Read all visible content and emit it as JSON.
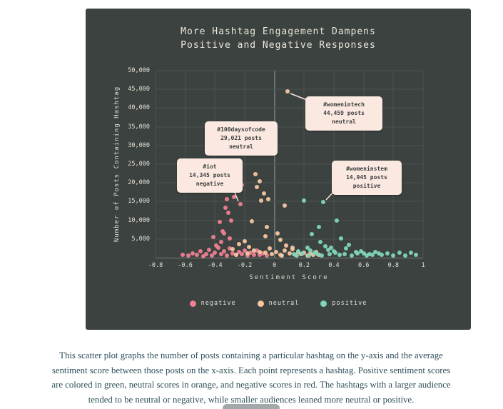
{
  "page": {
    "caption": "This scatter plot graphs the number of posts containing a particular hashtag on the y-axis and the average sentiment score between those posts on the x-axis. Each point represents a hashtag. Positive sentiment scores are colored in green, neutral scores in orange, and negative scores in red. The hashtags with a larger audience tended to be neutral or negative, while smaller audiences leaned more neutral or positive."
  },
  "chart": {
    "panel_bg": "#3b4240",
    "title_line1": "More Hashtag Engagement Dampens",
    "title_line2": "Positive and Negative Responses"
  },
  "chart_data": {
    "type": "scatter",
    "title": "More Hashtag Engagement Dampens Positive and Negative Responses",
    "xlabel": "Sentiment Score",
    "ylabel": "Number of Posts Containing Hashtag",
    "xlim": [
      -0.8,
      1.0
    ],
    "ylim": [
      0,
      50000
    ],
    "grid": true,
    "legend_position": "bottom",
    "x_ticks": [
      {
        "v": -0.8,
        "label": "-0.8"
      },
      {
        "v": -0.6,
        "label": "-0.6"
      },
      {
        "v": -0.4,
        "label": "-0.4"
      },
      {
        "v": -0.2,
        "label": "-0.2"
      },
      {
        "v": 0,
        "label": "0"
      },
      {
        "v": 0.2,
        "label": "0.2"
      },
      {
        "v": 0.4,
        "label": "0.4"
      },
      {
        "v": 0.6,
        "label": "0.6"
      },
      {
        "v": 0.8,
        "label": "0.8"
      },
      {
        "v": 1,
        "label": "1"
      }
    ],
    "y_ticks": [
      {
        "v": 5000,
        "label": "5,000"
      },
      {
        "v": 10000,
        "label": "10,000"
      },
      {
        "v": 15000,
        "label": "15,000"
      },
      {
        "v": 20000,
        "label": "20,000"
      },
      {
        "v": 25000,
        "label": "25,000"
      },
      {
        "v": 30000,
        "label": "30,000"
      },
      {
        "v": 35000,
        "label": "35,000"
      },
      {
        "v": 40000,
        "label": "40,000"
      },
      {
        "v": 45000,
        "label": "45,000"
      },
      {
        "v": 50000,
        "label": "50,000"
      }
    ],
    "series": [
      {
        "name": "negative",
        "color": "#ee7f92",
        "points": [
          [
            -0.62,
            800
          ],
          [
            -0.58,
            500
          ],
          [
            -0.55,
            1100
          ],
          [
            -0.52,
            700
          ],
          [
            -0.5,
            1700
          ],
          [
            -0.48,
            400
          ],
          [
            -0.46,
            900
          ],
          [
            -0.44,
            2100
          ],
          [
            -0.42,
            600
          ],
          [
            -0.41,
            5600
          ],
          [
            -0.4,
            1400
          ],
          [
            -0.39,
            3300
          ],
          [
            -0.38,
            2600
          ],
          [
            -0.37,
            9500
          ],
          [
            -0.36,
            4200
          ],
          [
            -0.35,
            7100
          ],
          [
            -0.34,
            6400
          ],
          [
            -0.34,
            1800
          ],
          [
            -0.33,
            13400
          ],
          [
            -0.32,
            15600
          ],
          [
            -0.31,
            12000
          ],
          [
            -0.3,
            5100
          ],
          [
            -0.3,
            2400
          ],
          [
            -0.29,
            9900
          ],
          [
            -0.28,
            1200
          ],
          [
            -0.27,
            16300
          ],
          [
            -0.26,
            20200
          ],
          [
            -0.26,
            700
          ],
          [
            -0.24,
            21700
          ],
          [
            -0.24,
            1600
          ],
          [
            -0.23,
            14345
          ],
          [
            -0.22,
            19500
          ],
          [
            -0.22,
            900
          ],
          [
            -0.2,
            2000
          ],
          [
            -0.18,
            600
          ],
          [
            -0.16,
            1300
          ],
          [
            -0.14,
            800
          ],
          [
            -0.12,
            1900
          ],
          [
            -0.1,
            700
          ],
          [
            -0.08,
            1200
          ],
          [
            -0.05,
            500
          ],
          [
            -0.36,
            900
          ],
          [
            -0.32,
            600
          ]
        ]
      },
      {
        "name": "neutral",
        "color": "#f6c6a1",
        "points": [
          [
            0.09,
            44459
          ],
          [
            0.0,
            29021
          ],
          [
            -0.13,
            22400
          ],
          [
            -0.1,
            20400
          ],
          [
            -0.12,
            18900
          ],
          [
            -0.07,
            17200
          ],
          [
            -0.09,
            15300
          ],
          [
            -0.04,
            15600
          ],
          [
            0.07,
            13900
          ],
          [
            -0.15,
            9800
          ],
          [
            -0.05,
            8200
          ],
          [
            0.02,
            6400
          ],
          [
            0.04,
            4800
          ],
          [
            -0.06,
            5700
          ],
          [
            -0.2,
            4300
          ],
          [
            -0.24,
            3600
          ],
          [
            -0.17,
            2900
          ],
          [
            -0.28,
            2300
          ],
          [
            -0.14,
            2000
          ],
          [
            -0.1,
            1600
          ],
          [
            -0.06,
            1300
          ],
          [
            -0.02,
            1000
          ],
          [
            0.01,
            1500
          ],
          [
            0.04,
            800
          ],
          [
            0.07,
            1900
          ],
          [
            0.1,
            1200
          ],
          [
            0.12,
            2200
          ],
          [
            0.14,
            700
          ],
          [
            0.16,
            1600
          ],
          [
            0.18,
            1000
          ],
          [
            0.2,
            1400
          ],
          [
            0.22,
            600
          ],
          [
            0.24,
            1100
          ],
          [
            0.26,
            800
          ],
          [
            0.28,
            1500
          ],
          [
            0.3,
            700
          ],
          [
            0.08,
            3300
          ],
          [
            0.12,
            2700
          ],
          [
            -0.03,
            2500
          ],
          [
            -0.18,
            1200
          ],
          [
            -0.26,
            800
          ],
          [
            0.05,
            600
          ]
        ]
      },
      {
        "name": "positive",
        "color": "#80d5b9",
        "points": [
          [
            0.33,
            14945
          ],
          [
            0.2,
            15200
          ],
          [
            0.42,
            9900
          ],
          [
            0.3,
            8200
          ],
          [
            0.25,
            6300
          ],
          [
            0.45,
            5100
          ],
          [
            0.31,
            4200
          ],
          [
            0.5,
            3400
          ],
          [
            0.34,
            3000
          ],
          [
            0.48,
            2400
          ],
          [
            0.22,
            2700
          ],
          [
            0.36,
            2100
          ],
          [
            0.4,
            1800
          ],
          [
            0.55,
            1500
          ],
          [
            0.58,
            1800
          ],
          [
            0.6,
            1200
          ],
          [
            0.64,
            900
          ],
          [
            0.68,
            1600
          ],
          [
            0.72,
            700
          ],
          [
            0.76,
            1100
          ],
          [
            0.8,
            600
          ],
          [
            0.84,
            1300
          ],
          [
            0.88,
            500
          ],
          [
            0.92,
            1400
          ],
          [
            0.95,
            800
          ],
          [
            0.13,
            900
          ],
          [
            0.16,
            1800
          ],
          [
            0.19,
            1200
          ],
          [
            0.23,
            600
          ],
          [
            0.27,
            1400
          ],
          [
            0.29,
            900
          ],
          [
            0.32,
            600
          ],
          [
            0.37,
            1000
          ],
          [
            0.41,
            1300
          ],
          [
            0.44,
            700
          ],
          [
            0.47,
            900
          ],
          [
            0.52,
            600
          ],
          [
            0.56,
            1100
          ],
          [
            0.62,
            500
          ],
          [
            0.66,
            800
          ],
          [
            0.7,
            1200
          ],
          [
            0.15,
            500
          ],
          [
            0.24,
            2000
          ],
          [
            0.38,
            2600
          ]
        ]
      }
    ],
    "annotations": [
      {
        "line1": "#womenintech",
        "line2": "44,459 posts",
        "line3": "neutral",
        "x": 0.09,
        "y": 44459
      },
      {
        "line1": "#100daysofcode",
        "line2": "29,021 posts",
        "line3": "neutral",
        "x": 0.0,
        "y": 29021
      },
      {
        "line1": "#iot",
        "line2": "14,345 posts",
        "line3": "negative",
        "x": -0.23,
        "y": 14345
      },
      {
        "line1": "#womeninstem",
        "line2": "14,945 posts",
        "line3": "positive",
        "x": 0.33,
        "y": 14945
      }
    ]
  }
}
